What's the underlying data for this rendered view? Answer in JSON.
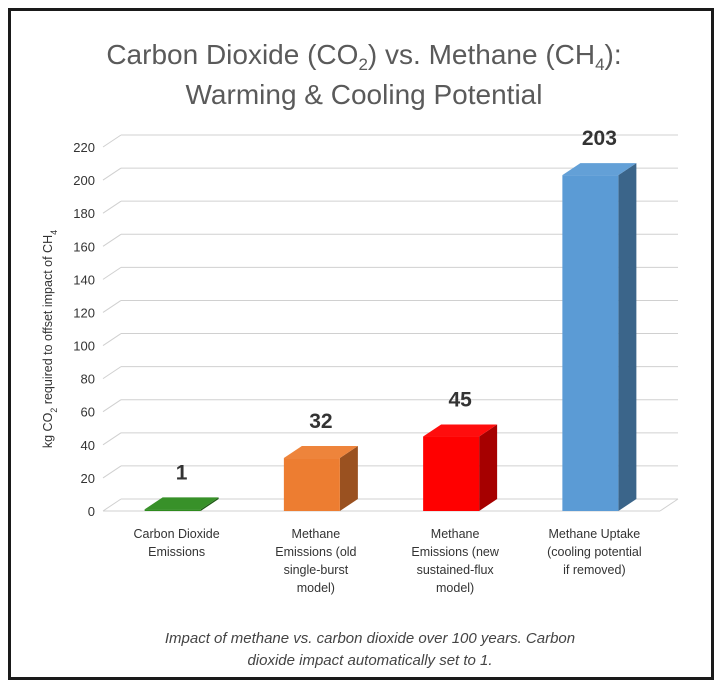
{
  "title": {
    "line1_prefix": "Carbon Dioxide (CO",
    "line1_sub1": "2",
    "line1_mid": ") vs. Methane (CH",
    "line1_sub2": "4",
    "line1_suffix": "):",
    "line2": "Warming & Cooling Potential"
  },
  "caption": {
    "line1": "Impact of methane vs. carbon dioxide over 100 years. Carbon",
    "line2": "dioxide impact automatically set to 1."
  },
  "chart_data": {
    "type": "bar",
    "style": "3d-column",
    "categories": [
      [
        "Carbon Dioxide",
        "Emissions"
      ],
      [
        "Methane",
        "Emissions (old",
        "single-burst",
        "model)"
      ],
      [
        "Methane",
        "Emissions (new",
        "sustained-flux",
        "model)"
      ],
      [
        "Methane Uptake",
        "(cooling potential",
        "if removed)"
      ]
    ],
    "values": [
      1,
      32,
      45,
      203
    ],
    "data_labels": [
      "1",
      "32",
      "45",
      "203"
    ],
    "colors": [
      "#2e8b1e",
      "#ed7d31",
      "#ff0000",
      "#5b9bd5"
    ],
    "ylabel_prefix": "kg CO",
    "ylabel_sub1": "2",
    "ylabel_mid": " required to offset impact of CH",
    "ylabel_sub2": "4",
    "ylim": [
      0,
      220
    ],
    "yticks": [
      0,
      20,
      40,
      60,
      80,
      100,
      120,
      140,
      160,
      180,
      200,
      220
    ],
    "grid": true,
    "legend": "none"
  }
}
